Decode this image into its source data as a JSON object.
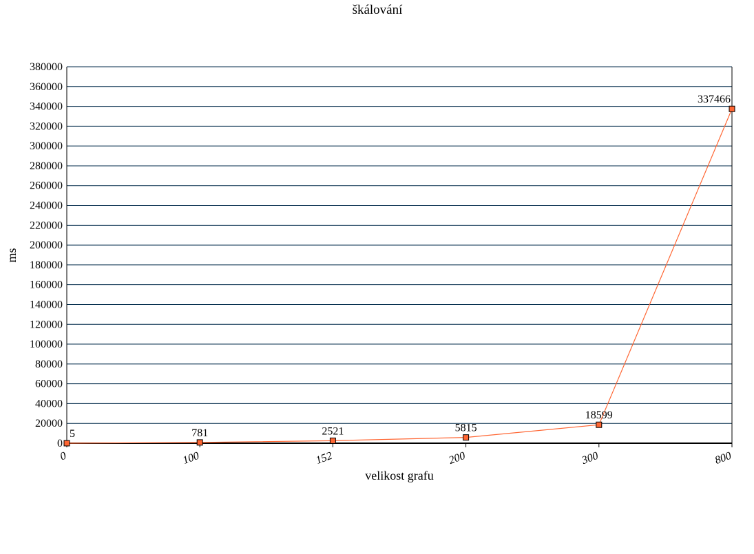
{
  "chart_data": {
    "type": "line",
    "title": "škálování",
    "xlabel": "velikost grafu",
    "ylabel": "ms",
    "categories": [
      "0",
      "100",
      "152",
      "200",
      "300",
      "800"
    ],
    "series": [
      {
        "values": [
          5,
          781,
          2521,
          5815,
          18599,
          337466
        ],
        "color": "#ff6633"
      }
    ],
    "data_labels": [
      "5",
      "781",
      "2521",
      "5815",
      "18599",
      "337466"
    ],
    "ylim": [
      0,
      380000
    ],
    "y_ticks": [
      "0",
      "20000",
      "40000",
      "60000",
      "80000",
      "100000",
      "120000",
      "140000",
      "160000",
      "180000",
      "200000",
      "220000",
      "240000",
      "260000",
      "280000",
      "300000",
      "320000",
      "340000",
      "360000",
      "380000"
    ],
    "grid": true,
    "legend": "none",
    "colors": {
      "line": "#ff6633",
      "marker_fill": "#ff6633",
      "marker_stroke": "#000000",
      "grid": "#002a4a",
      "axis": "#000000"
    }
  }
}
